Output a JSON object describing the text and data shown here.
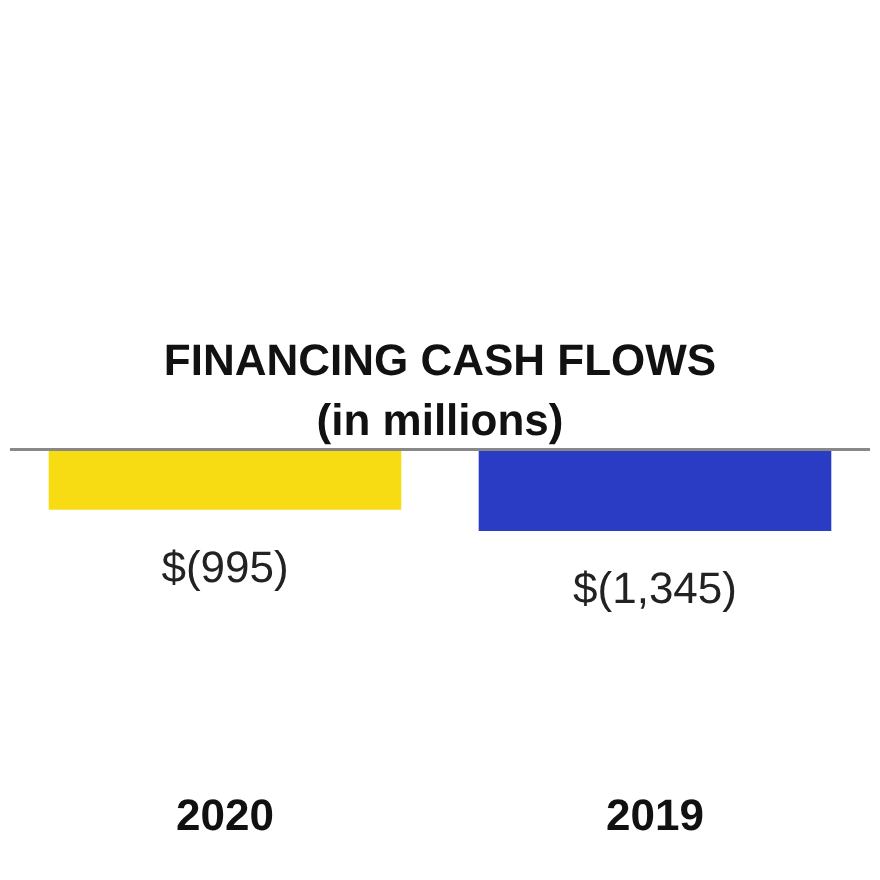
{
  "chart_data": {
    "type": "bar",
    "title": "FINANCING CASH FLOWS",
    "subtitle": "(in millions)",
    "categories": [
      "2020",
      "2019"
    ],
    "values": [
      -995,
      -1345
    ],
    "colors": [
      "#f7dc14",
      "#2a3bc4"
    ],
    "value_labels": [
      "$(995)",
      "$(1,345)"
    ],
    "legend": false,
    "grid": false
  }
}
